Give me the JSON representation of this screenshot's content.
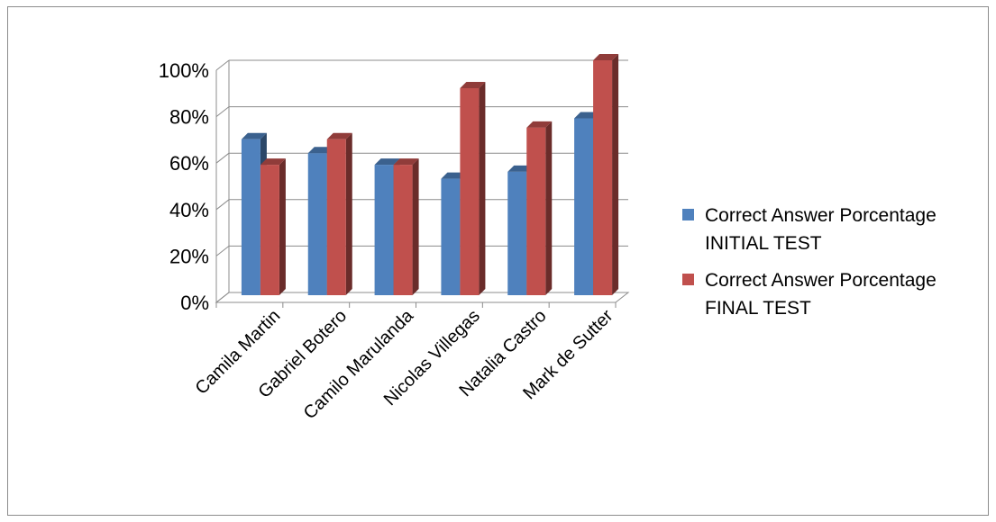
{
  "chart_data": {
    "type": "bar",
    "categories": [
      "Camila Martin",
      "Gabriel Botero",
      "Camilo Marulanda",
      "Nicolas Villegas",
      "Natalia Castro",
      "Mark de Sutter"
    ],
    "series": [
      {
        "name": "Correct Answer Porcentage INITIAL TEST",
        "values": [
          66,
          60,
          55,
          49,
          52,
          75
        ],
        "color": "#4f81bd"
      },
      {
        "name": "Correct Answer Porcentage FINAL TEST",
        "values": [
          55,
          66,
          55,
          88,
          71,
          100
        ],
        "color": "#c0504d"
      }
    ],
    "yticks": [
      "0%",
      "20%",
      "40%",
      "60%",
      "80%",
      "100%"
    ],
    "ylim": [
      0,
      100
    ],
    "grid": true,
    "legend_position": "right",
    "style": "3d-clustered-column"
  }
}
